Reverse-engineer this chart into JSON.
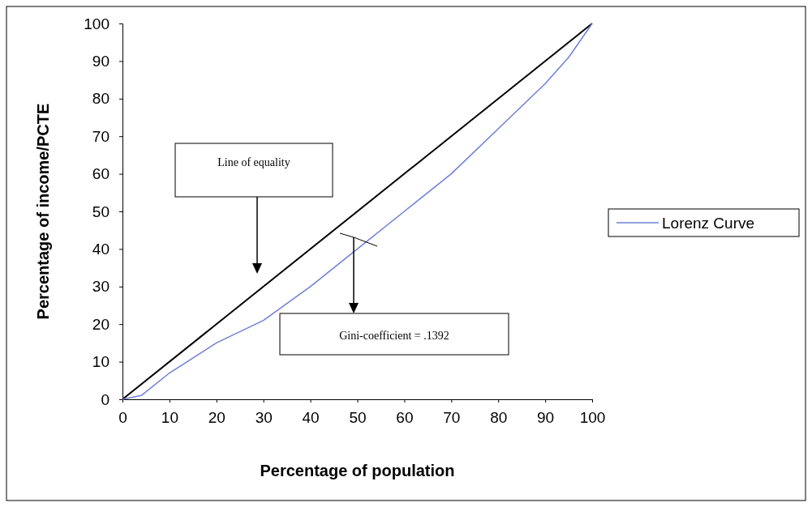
{
  "chart_data": {
    "type": "line",
    "xlabel": "Percentage of population",
    "ylabel": "Percentage of income/PCTE",
    "xlim": [
      0,
      100
    ],
    "ylim": [
      0,
      100
    ],
    "xticks": [
      0,
      10,
      20,
      30,
      40,
      50,
      60,
      70,
      80,
      90,
      100
    ],
    "yticks": [
      0,
      10,
      20,
      30,
      40,
      50,
      60,
      70,
      80,
      90,
      100
    ],
    "grid": false,
    "legend": "right",
    "marker": "none",
    "line_style": "solid",
    "series": [
      {
        "color": "#000000",
        "x": [
          0,
          100
        ],
        "values": [
          0,
          100
        ]
      },
      {
        "name": "Lorenz Curve",
        "color": "#6f7fd8",
        "x": [
          0,
          4,
          10,
          20,
          30,
          40,
          50,
          60,
          70,
          80,
          90,
          95,
          100
        ],
        "values": [
          0,
          1,
          7,
          15,
          21,
          30,
          40,
          50,
          60,
          72,
          84,
          91,
          100
        ]
      }
    ],
    "annotations": [
      "Line of equality",
      "Gini-coefficient = .1392"
    ]
  }
}
